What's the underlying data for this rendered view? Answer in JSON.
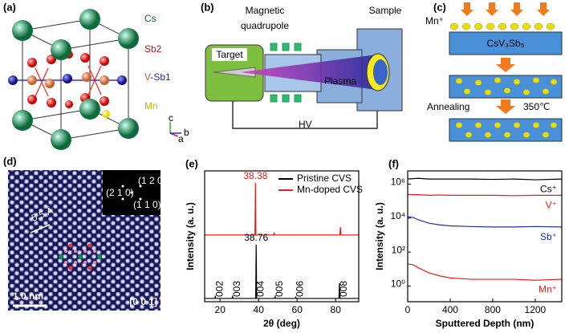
{
  "panel_a": {
    "label": "(a)",
    "atoms": {
      "cs": "Cs",
      "sb2": "Sb2",
      "v": "V",
      "sb1": "-Sb1",
      "mn": "Mn"
    },
    "axes": [
      "c",
      "a",
      "b"
    ]
  },
  "panel_b": {
    "label": "(b)",
    "quadrupole": [
      "Magnetic",
      "quadrupole"
    ],
    "sample": "Sample",
    "target": "Target",
    "plasma": "Plasma",
    "hv": "HV"
  },
  "panel_c": {
    "label": "(c)",
    "ion": "Mn⁺",
    "crystal": "CsV₃Sb₅",
    "annealing": "Annealing",
    "temperature": "350℃"
  },
  "panel_d": {
    "label": "(d)",
    "spacing": "5.5 Å",
    "scale_bar": "1.0 nm",
    "zone_axis": "[0 0 1]",
    "fft_spots": [
      "(1 2 0)",
      "(2 1 0)",
      "(1 1 0)"
    ]
  },
  "chart_data": [
    {
      "type": "line",
      "panel_label": "(e)",
      "xlabel": "2θ (deg)",
      "ylabel": "Intensity (a. u.)",
      "xlim": [
        12,
        92
      ],
      "xticks": [
        20,
        40,
        60,
        80
      ],
      "ylim": [
        0,
        100
      ],
      "legend": "upper right",
      "series": [
        {
          "name": "Pristine CVS",
          "color": "#000000",
          "x": [
            12,
            17.2,
            17.5,
            17.8,
            26.2,
            26.5,
            26.8,
            38.5,
            38.76,
            39.0,
            48.3,
            48.6,
            48.9,
            59.0,
            59.3,
            59.6,
            81.7,
            82.0,
            82.3,
            92
          ],
          "values": [
            2.5,
            2.5,
            4,
            2.5,
            2.5,
            4,
            2.5,
            2.5,
            43.6,
            2.5,
            2.5,
            4,
            2.5,
            2.5,
            3.5,
            2.5,
            2.5,
            14,
            2.5,
            2.5
          ]
        },
        {
          "name": "Mn-doped CVS",
          "color": "#e8201c",
          "x": [
            12,
            38.1,
            38.38,
            38.6,
            47.8,
            48.1,
            48.4,
            82.2,
            82.5,
            82.8,
            92
          ],
          "values": [
            51,
            51,
            91,
            51,
            51,
            53,
            51,
            51,
            57,
            51,
            51
          ]
        }
      ],
      "peak_values": [
        {
          "series": 1,
          "x": 38.38,
          "y": 91
        },
        {
          "series": 0,
          "x": 38.76,
          "y": 43.6
        }
      ],
      "peak_labels": [
        {
          "label": "002",
          "x": 17.5
        },
        {
          "label": "003",
          "x": 26.5
        },
        {
          "label": "004",
          "x": 38.76
        },
        {
          "label": "005",
          "x": 48.6
        },
        {
          "label": "006",
          "x": 59.3
        },
        {
          "label": "008",
          "x": 82.0
        }
      ]
    },
    {
      "type": "line",
      "panel_label": "(f)",
      "xlabel": "Sputtered Depth (nm)",
      "ylabel": "Intensity (a. u.)",
      "log_y": true,
      "xlim": [
        0,
        1450
      ],
      "xticks": [
        0,
        400,
        800,
        1200
      ],
      "ylim": [
        0.12,
        6000000
      ],
      "yticks": [
        {
          "value": 1,
          "label": "10⁰"
        },
        {
          "value": 100,
          "label": "10²"
        },
        {
          "value": 10000,
          "label": "10⁴"
        },
        {
          "value": 1000000,
          "label": "10⁶"
        }
      ],
      "x": [
        0,
        50,
        100,
        200,
        300,
        400,
        600,
        800,
        1000,
        1200,
        1450
      ],
      "series": [
        {
          "name": "Cs⁺",
          "color": "#000000",
          "values": [
            2000000,
            2100000,
            2200000,
            2000000,
            2000000,
            2000000,
            2000000,
            1900000,
            2000000,
            1800000,
            2000000
          ]
        },
        {
          "name": "V⁺",
          "color": "#e8201c",
          "values": [
            250000,
            240000,
            240000,
            220000,
            230000,
            220000,
            220000,
            220000,
            210000,
            220000,
            220000
          ]
        },
        {
          "name": "Sb⁺",
          "color": "#1f2fa8",
          "values": [
            12000,
            11000,
            8000,
            5000,
            4000,
            3500,
            3200,
            3000,
            3000,
            3200,
            3000
          ]
        },
        {
          "name": "Mn⁺",
          "color": "#e8201c",
          "values": [
            20,
            18,
            12,
            6,
            4,
            3,
            2.5,
            2.5,
            2.5,
            2.2,
            2.5
          ]
        }
      ]
    }
  ]
}
